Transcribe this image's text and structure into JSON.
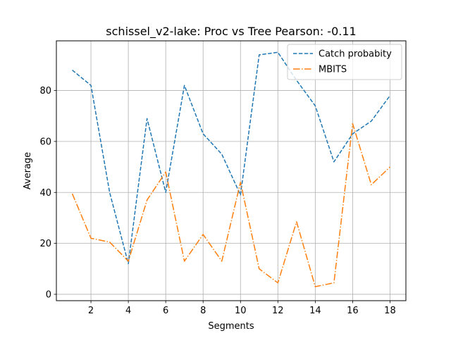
{
  "chart_data": {
    "type": "line",
    "title": "schissel_v2-lake: Proc vs Tree Pearson: -0.11",
    "xlabel": "Segments",
    "ylabel": "Average",
    "x": [
      1,
      2,
      3,
      4,
      5,
      6,
      7,
      8,
      9,
      10,
      11,
      12,
      13,
      14,
      15,
      16,
      17,
      18
    ],
    "xlim": [
      0.15,
      18.85
    ],
    "ylim": [
      -2.5,
      99.5
    ],
    "xticks": [
      2,
      4,
      6,
      8,
      10,
      12,
      14,
      16,
      18
    ],
    "yticks": [
      0,
      20,
      40,
      60,
      80
    ],
    "grid": true,
    "legend_position": "top-right",
    "series": [
      {
        "name": "Catch probabity",
        "color": "#1f77b4",
        "dash": "dashed",
        "values": [
          88,
          82,
          40,
          12,
          69,
          40,
          82,
          63,
          55,
          39,
          94,
          95,
          84,
          74,
          52,
          63,
          68,
          78
        ]
      },
      {
        "name": "MBITS",
        "color": "#ff7f0e",
        "dash": "dashdot",
        "values": [
          39.5,
          22,
          20.5,
          13,
          37,
          48,
          13,
          23.5,
          13,
          44,
          10,
          4.5,
          28.5,
          3,
          4.5,
          67,
          43,
          50
        ]
      }
    ]
  }
}
